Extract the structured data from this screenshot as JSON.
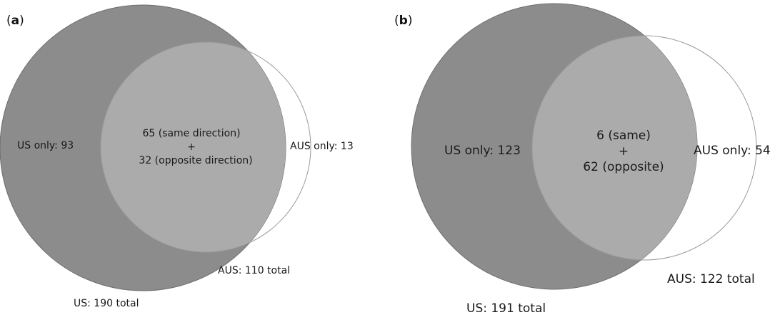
{
  "panels": [
    {
      "label_open": "(",
      "label_letter": "a",
      "label_close": ")",
      "us_only": "US only: 93",
      "overlap_line1": "65 (same direction)",
      "overlap_plus": "+",
      "overlap_line2": "32 (opposite direction)",
      "aus_only": "AUS only: 13",
      "aus_total": "AUS: 110 total",
      "us_total": "US: 190 total"
    },
    {
      "label_open": "(",
      "label_letter": "b",
      "label_close": ")",
      "us_only": "US only: 123",
      "overlap_line1": "6 (same)",
      "overlap_plus": "+",
      "overlap_line2": "62 (opposite)",
      "aus_only": "AUS only: 54",
      "aus_total": "AUS: 122 total",
      "us_total": "US: 191 total"
    }
  ],
  "colors": {
    "us_circle": "#8c8c8c",
    "overlap": "#ababab",
    "aus_outline": "#9a9a9a",
    "text": "#1a1a1a"
  }
}
